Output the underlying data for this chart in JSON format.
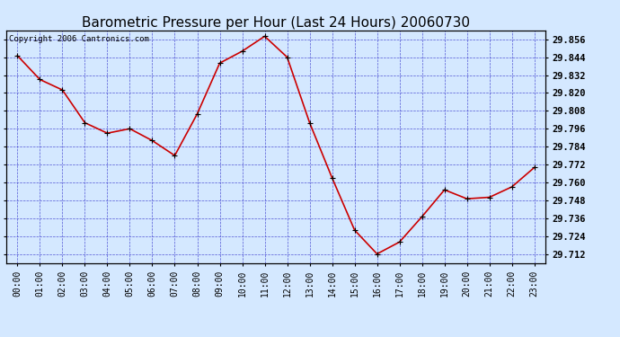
{
  "title": "Barometric Pressure per Hour (Last 24 Hours) 20060730",
  "copyright": "Copyright 2006 Cantronics.com",
  "hours": [
    "00:00",
    "01:00",
    "02:00",
    "03:00",
    "04:00",
    "05:00",
    "06:00",
    "07:00",
    "08:00",
    "09:00",
    "10:00",
    "11:00",
    "12:00",
    "13:00",
    "14:00",
    "15:00",
    "16:00",
    "17:00",
    "18:00",
    "19:00",
    "20:00",
    "21:00",
    "22:00",
    "23:00"
  ],
  "values": [
    29.845,
    29.829,
    29.822,
    29.8,
    29.793,
    29.796,
    29.788,
    29.778,
    29.806,
    29.84,
    29.848,
    29.858,
    29.844,
    29.8,
    29.763,
    29.728,
    29.712,
    29.72,
    29.737,
    29.755,
    29.749,
    29.75,
    29.757,
    29.77
  ],
  "ylim_min": 29.706,
  "ylim_max": 29.862,
  "yticks": [
    29.712,
    29.724,
    29.736,
    29.748,
    29.76,
    29.772,
    29.784,
    29.796,
    29.808,
    29.82,
    29.832,
    29.844,
    29.856
  ],
  "line_color": "#cc0000",
  "marker_color": "#000000",
  "background_color": "#d4e8ff",
  "grid_color": "#3333cc",
  "title_fontsize": 11,
  "copyright_fontsize": 6.5,
  "tick_fontsize": 7,
  "ytick_fontsize": 7.5
}
